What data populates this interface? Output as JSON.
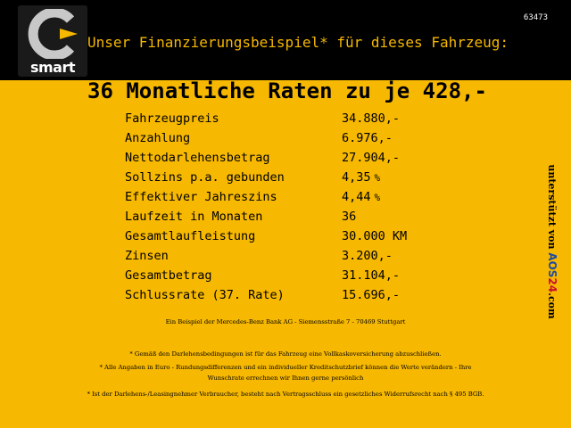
{
  "header": {
    "ad_id": "63473",
    "headline": "Unser Finanzierungsbeispiel* für dieses Fahrzeug:",
    "logo": {
      "name": "smart-logo-icon",
      "text": "smart",
      "colors": {
        "arc": "#c8c8c8",
        "wedge": "#f6b800"
      }
    }
  },
  "offer": {
    "title": "36 Monatliche Raten zu je 428,-"
  },
  "specs": [
    {
      "label": "Fahrzeugpreis",
      "value": "34.880,-",
      "unit": ""
    },
    {
      "label": "Anzahlung",
      "value": "6.976,-",
      "unit": ""
    },
    {
      "label": "Nettodarlehensbetrag",
      "value": "27.904,-",
      "unit": ""
    },
    {
      "label": "Sollzins p.a. gebunden",
      "value": "4,35",
      "unit": "%"
    },
    {
      "label": "Effektiver Jahreszins",
      "value": "4,44",
      "unit": "%"
    },
    {
      "label": "Laufzeit in Monaten",
      "value": "36",
      "unit": ""
    },
    {
      "label": "Gesamtlaufleistung",
      "value": "30.000 KM",
      "unit": ""
    },
    {
      "label": "Zinsen",
      "value": "3.200,-",
      "unit": ""
    },
    {
      "label": "Gesamtbetrag",
      "value": "31.104,-",
      "unit": ""
    },
    {
      "label": "Schlussrate (37. Rate)",
      "value": "15.696,-",
      "unit": ""
    }
  ],
  "sidebar": {
    "prefix": "unterstützt von ",
    "brand1": "AOS",
    "brand2": "24",
    "suffix": ".com"
  },
  "notes": {
    "bank": "Ein Beispiel der Mercedes-Benz Bank AG - Siemensstraße 7 - 70469 Stuttgart",
    "insurance": "* Gemäß den Darlehensbedingungen ist für das Fahrzeug eine Vollkaskoversicherung abzuschließen.",
    "euro_line1": "* Alle Angaben in Euro - Rundungsdifferenzen und ein individueller Kreditschutzbrief können die Werte verändern - Ihre",
    "euro_line2": "Wunschrate errechnen wir Ihnen gerne persönlich",
    "consumer": "* Ist der Darlehens-/Leasingnehmer Verbraucher, besteht nach Vertragsschluss ein gesetzliches Widerrufsrecht nach § 495 BGB."
  },
  "colors": {
    "background": "#f6b800",
    "header_bg": "#000000",
    "headline": "#f6b800"
  }
}
